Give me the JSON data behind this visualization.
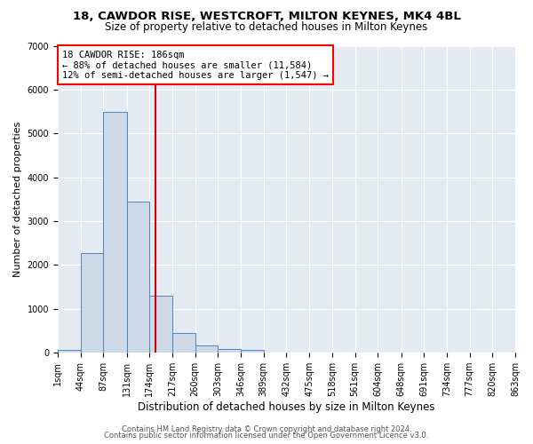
{
  "title1": "18, CAWDOR RISE, WESTCROFT, MILTON KEYNES, MK4 4BL",
  "title2": "Size of property relative to detached houses in Milton Keynes",
  "xlabel": "Distribution of detached houses by size in Milton Keynes",
  "ylabel": "Number of detached properties",
  "bar_color": "#cdd9e8",
  "bar_edge_color": "#5585b5",
  "bg_color": "#e4eaf2",
  "grid_color": "white",
  "annotation_line_color": "#cc0000",
  "annotation_text": "18 CAWDOR RISE: 186sqm\n← 88% of detached houses are smaller (11,584)\n12% of semi-detached houses are larger (1,547) →",
  "property_size": 186,
  "bin_edges": [
    1,
    44,
    87,
    131,
    174,
    217,
    260,
    303,
    346,
    389,
    432,
    475,
    518,
    561,
    604,
    648,
    691,
    734,
    777,
    820,
    863
  ],
  "bin_counts": [
    75,
    2275,
    5500,
    3450,
    1300,
    460,
    165,
    90,
    75,
    0,
    0,
    0,
    0,
    0,
    0,
    0,
    0,
    0,
    0,
    0
  ],
  "ylim": [
    0,
    7000
  ],
  "yticks": [
    0,
    1000,
    2000,
    3000,
    4000,
    5000,
    6000,
    7000
  ],
  "tick_labels": [
    "1sqm",
    "44sqm",
    "87sqm",
    "131sqm",
    "174sqm",
    "217sqm",
    "260sqm",
    "303sqm",
    "346sqm",
    "389sqm",
    "432sqm",
    "475sqm",
    "518sqm",
    "561sqm",
    "604sqm",
    "648sqm",
    "691sqm",
    "734sqm",
    "777sqm",
    "820sqm",
    "863sqm"
  ],
  "footer1": "Contains HM Land Registry data © Crown copyright and database right 2024.",
  "footer2": "Contains public sector information licensed under the Open Government Licence v3.0.",
  "title1_fontsize": 9.5,
  "title2_fontsize": 8.5,
  "xlabel_fontsize": 8.5,
  "ylabel_fontsize": 8,
  "tick_fontsize": 7,
  "footer_fontsize": 6
}
